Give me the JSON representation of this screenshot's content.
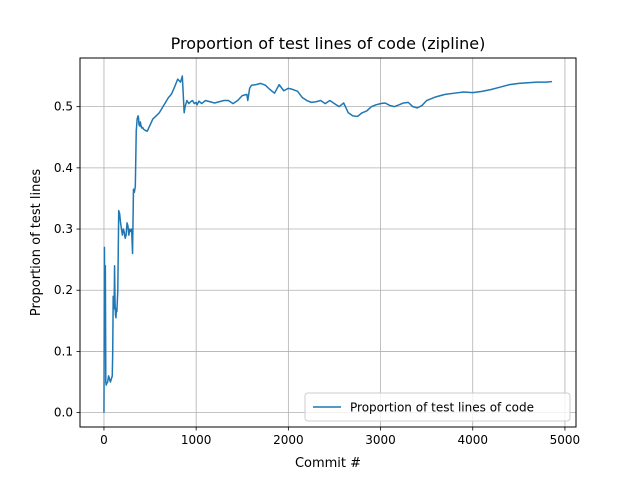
{
  "chart_data": {
    "type": "line",
    "title": "Proportion of test lines of code (zipline)",
    "xlabel": "Commit #",
    "ylabel": "Proportion of test lines",
    "xlim": [
      -260,
      5120
    ],
    "ylim": [
      -0.0235,
      0.5795
    ],
    "xticks": [
      0,
      1000,
      2000,
      3000,
      4000,
      5000
    ],
    "xtick_labels": [
      "0",
      "1000",
      "2000",
      "3000",
      "4000",
      "5000"
    ],
    "yticks": [
      0.0,
      0.1,
      0.2,
      0.3,
      0.4,
      0.5
    ],
    "ytick_labels": [
      "0.0",
      "0.1",
      "0.2",
      "0.3",
      "0.4",
      "0.5"
    ],
    "grid": true,
    "legend_position": "lower-right",
    "series": [
      {
        "name": "Proportion of test lines of code",
        "color": "#1f77b4",
        "x": [
          0,
          5,
          10,
          15,
          20,
          25,
          30,
          40,
          50,
          60,
          70,
          80,
          90,
          95,
          100,
          110,
          115,
          120,
          125,
          130,
          135,
          140,
          150,
          160,
          170,
          180,
          190,
          195,
          200,
          210,
          220,
          230,
          240,
          250,
          260,
          270,
          280,
          290,
          300,
          310,
          320,
          330,
          340,
          350,
          360,
          370,
          375,
          380,
          385,
          390,
          395,
          400,
          410,
          420,
          430,
          450,
          470,
          500,
          530,
          560,
          600,
          620,
          640,
          660,
          680,
          700,
          730,
          760,
          800,
          830,
          850,
          870,
          880,
          890,
          900,
          920,
          940,
          960,
          980,
          1000,
          1010,
          1030,
          1060,
          1100,
          1150,
          1200,
          1250,
          1300,
          1350,
          1400,
          1450,
          1500,
          1550,
          1560,
          1580,
          1600,
          1650,
          1700,
          1750,
          1800,
          1850,
          1900,
          1950,
          2000,
          2050,
          2100,
          2150,
          2200,
          2250,
          2300,
          2350,
          2400,
          2450,
          2500,
          2550,
          2600,
          2650,
          2700,
          2750,
          2800,
          2850,
          2900,
          2950,
          3000,
          3050,
          3100,
          3150,
          3200,
          3250,
          3300,
          3350,
          3400,
          3450,
          3500,
          3600,
          3700,
          3800,
          3900,
          4000,
          4100,
          4200,
          4300,
          4400,
          4500,
          4600,
          4700,
          4800,
          4860
        ],
        "y": [
          0.0,
          0.27,
          0.13,
          0.24,
          0.05,
          0.045,
          0.048,
          0.05,
          0.06,
          0.055,
          0.05,
          0.055,
          0.06,
          0.1,
          0.19,
          0.17,
          0.24,
          0.18,
          0.16,
          0.155,
          0.17,
          0.165,
          0.2,
          0.33,
          0.325,
          0.31,
          0.3,
          0.295,
          0.29,
          0.3,
          0.295,
          0.285,
          0.29,
          0.31,
          0.305,
          0.29,
          0.3,
          0.296,
          0.3,
          0.26,
          0.365,
          0.36,
          0.37,
          0.46,
          0.48,
          0.485,
          0.482,
          0.47,
          0.472,
          0.468,
          0.475,
          0.47,
          0.465,
          0.466,
          0.463,
          0.461,
          0.46,
          0.47,
          0.48,
          0.484,
          0.49,
          0.495,
          0.5,
          0.505,
          0.51,
          0.515,
          0.52,
          0.53,
          0.545,
          0.54,
          0.55,
          0.49,
          0.5,
          0.505,
          0.51,
          0.505,
          0.508,
          0.51,
          0.505,
          0.507,
          0.503,
          0.509,
          0.505,
          0.51,
          0.508,
          0.506,
          0.508,
          0.51,
          0.51,
          0.505,
          0.51,
          0.518,
          0.52,
          0.51,
          0.53,
          0.535,
          0.536,
          0.538,
          0.535,
          0.528,
          0.522,
          0.536,
          0.526,
          0.53,
          0.528,
          0.525,
          0.515,
          0.51,
          0.507,
          0.508,
          0.51,
          0.505,
          0.51,
          0.505,
          0.5,
          0.506,
          0.49,
          0.485,
          0.484,
          0.49,
          0.493,
          0.5,
          0.503,
          0.505,
          0.506,
          0.502,
          0.5,
          0.503,
          0.506,
          0.507,
          0.5,
          0.498,
          0.502,
          0.51,
          0.516,
          0.52,
          0.522,
          0.524,
          0.523,
          0.525,
          0.528,
          0.532,
          0.536,
          0.538,
          0.539,
          0.54,
          0.54,
          0.541
        ]
      }
    ]
  }
}
